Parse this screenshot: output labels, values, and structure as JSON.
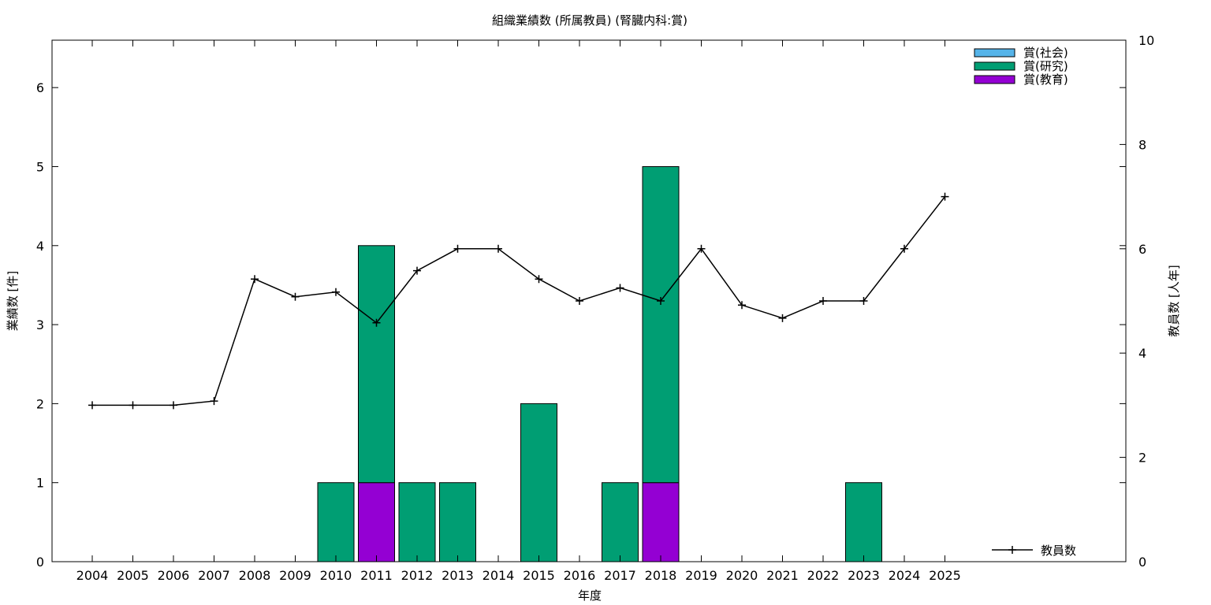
{
  "chart_data": {
    "type": "bar",
    "title": "組織業績数 (所属教員) (腎臓内科:賞)",
    "xlabel": "年度",
    "ylabel": "業績数 [件]",
    "y2label": "教員数 [人年]",
    "categories": [
      "2004",
      "2005",
      "2006",
      "2007",
      "2008",
      "2009",
      "2010",
      "2011",
      "2012",
      "2013",
      "2014",
      "2015",
      "2016",
      "2017",
      "2018",
      "2019",
      "2020",
      "2021",
      "2022",
      "2023",
      "2024",
      "2025"
    ],
    "ylim": [
      0,
      6.6
    ],
    "y_ticks": [
      "0",
      "1",
      "2",
      "3",
      "4",
      "5",
      "6"
    ],
    "y2lim": [
      0,
      10
    ],
    "y2_ticks": [
      "0",
      "2",
      "4",
      "6",
      "8",
      "10"
    ],
    "grid": false,
    "stacked": true,
    "series": [
      {
        "name": "賞(社会)",
        "color": "#56b4e9",
        "values": [
          0,
          0,
          0,
          0,
          0,
          0,
          0,
          0,
          0,
          0,
          0,
          0,
          0,
          0,
          0,
          0,
          0,
          0,
          0,
          0,
          0,
          0
        ]
      },
      {
        "name": "賞(研究)",
        "color": "#009e73",
        "values": [
          0,
          0,
          0,
          0,
          0,
          0,
          1,
          3,
          1,
          1,
          0,
          2,
          0,
          1,
          4,
          0,
          0,
          0,
          0,
          1,
          0,
          0
        ]
      },
      {
        "name": "賞(教育)",
        "color": "#9400d3",
        "values": [
          0,
          0,
          0,
          0,
          0,
          0,
          0,
          1,
          0,
          0,
          0,
          0,
          0,
          0,
          1,
          0,
          0,
          0,
          0,
          0,
          0,
          0
        ]
      }
    ],
    "line_series": {
      "name": "教員数",
      "axis": "y2",
      "color": "#000000",
      "values": [
        3.0,
        3.0,
        3.0,
        3.08,
        5.42,
        5.08,
        5.17,
        4.58,
        5.58,
        6.0,
        6.0,
        5.42,
        5.0,
        5.25,
        5.0,
        6.0,
        4.92,
        4.67,
        5.0,
        5.0,
        6.0,
        7.0
      ]
    },
    "legend_position": "top-right",
    "line_legend_position": "bottom-right"
  }
}
